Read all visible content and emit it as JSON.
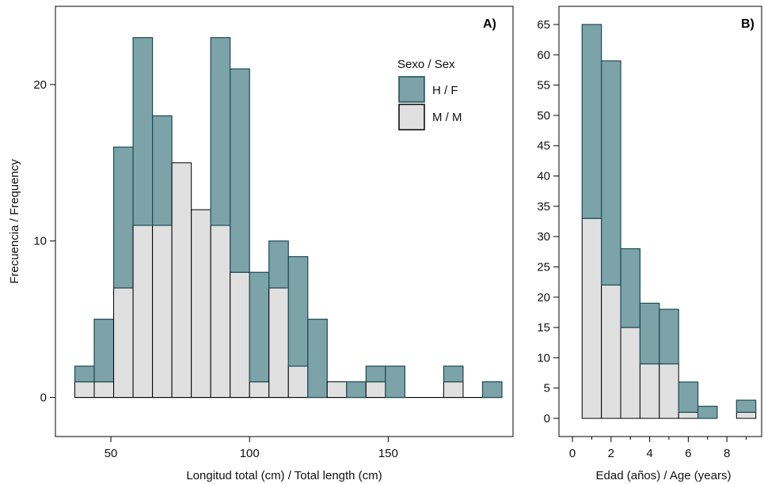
{
  "colors": {
    "female": "#7ca3a8",
    "male": "#e0e0e0",
    "female_stroke": "#1c4a55",
    "male_stroke": "#000000"
  },
  "chart_data": [
    {
      "type": "bar",
      "stacked": true,
      "tag": "A)",
      "xlabel": "Longitud total (cm) / Total length (cm)",
      "ylabel": "Frecuencia / Frequency",
      "legend_title": "Sexo / Sex",
      "legend_position": "top-right",
      "xlim": [
        30,
        195
      ],
      "ylim": [
        -2.5,
        25
      ],
      "xticks": [
        50,
        100,
        150
      ],
      "yticks": [
        0,
        10,
        20
      ],
      "grid": false,
      "bin_width": 7,
      "bin_starts": [
        37,
        44,
        51,
        58,
        65,
        72,
        79,
        86,
        93,
        100,
        107,
        114,
        121,
        128,
        135,
        142,
        149,
        156,
        163,
        170,
        177,
        184
      ],
      "series": [
        {
          "name": "M / M",
          "values": [
            1,
            1,
            7,
            11,
            11,
            15,
            12,
            11,
            8,
            1,
            7,
            2,
            0,
            1,
            0,
            1,
            0,
            0,
            0,
            1,
            0,
            0
          ]
        },
        {
          "name": "H / F",
          "values": [
            1,
            4,
            9,
            12,
            7,
            0,
            0,
            12,
            13,
            7,
            3,
            7,
            5,
            0,
            1,
            1,
            2,
            0,
            0,
            1,
            0,
            1
          ]
        }
      ]
    },
    {
      "type": "bar",
      "stacked": true,
      "tag": "B)",
      "xlabel": "Edad (años) / Age (years)",
      "ylabel": "",
      "xlim": [
        -0.7,
        9.8
      ],
      "ylim": [
        -3,
        68
      ],
      "xticks": [
        0,
        2,
        4,
        6,
        8
      ],
      "yticks": [
        0,
        5,
        10,
        15,
        20,
        25,
        30,
        35,
        40,
        45,
        50,
        55,
        60,
        65
      ],
      "grid": false,
      "bin_width": 1,
      "bin_starts": [
        0.5,
        1.5,
        2.5,
        3.5,
        4.5,
        5.5,
        6.5,
        7.5,
        8.5
      ],
      "series": [
        {
          "name": "M / M",
          "values": [
            33,
            22,
            15,
            9,
            9,
            1,
            0,
            0,
            1
          ]
        },
        {
          "name": "H / F",
          "values": [
            32,
            37,
            13,
            10,
            9,
            5,
            2,
            0,
            2
          ]
        }
      ]
    }
  ]
}
